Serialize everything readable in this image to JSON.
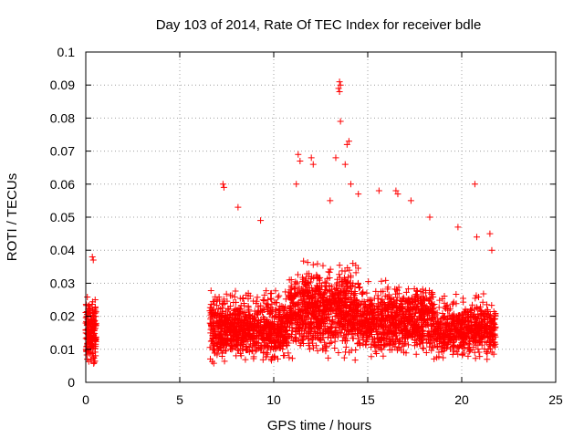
{
  "chart_data": {
    "type": "scatter",
    "title": "Day 103 of 2014, Rate Of TEC Index for receiver bdle",
    "xlabel": "GPS time / hours",
    "ylabel": "ROTI / TECUs",
    "xlim": [
      0,
      25
    ],
    "ylim": [
      0,
      0.1
    ],
    "x_ticks": [
      "0",
      "5",
      "10",
      "15",
      "20",
      "25"
    ],
    "y_ticks": [
      "0",
      "0.01",
      "0.02",
      "0.03",
      "0.04",
      "0.05",
      "0.06",
      "0.07",
      "0.08",
      "0.09",
      "0.1"
    ],
    "grid": true,
    "marker": "+",
    "color": "#ff0000",
    "point_clusters": [
      {
        "x_range": [
          0.0,
          0.55
        ],
        "y_range": [
          0.004,
          0.028
        ],
        "count": 180
      },
      {
        "x_range": [
          6.6,
          10.8
        ],
        "y_range": [
          0.005,
          0.03
        ],
        "count": 900
      },
      {
        "x_range": [
          10.8,
          14.6
        ],
        "y_range": [
          0.006,
          0.04
        ],
        "count": 900
      },
      {
        "x_range": [
          14.6,
          18.5
        ],
        "y_range": [
          0.007,
          0.033
        ],
        "count": 800
      },
      {
        "x_range": [
          18.5,
          21.8
        ],
        "y_range": [
          0.006,
          0.028
        ],
        "count": 600
      }
    ],
    "notable_points": [
      {
        "x": 0.35,
        "y": 0.038
      },
      {
        "x": 0.4,
        "y": 0.037
      },
      {
        "x": 7.3,
        "y": 0.06
      },
      {
        "x": 7.35,
        "y": 0.059
      },
      {
        "x": 8.1,
        "y": 0.053
      },
      {
        "x": 9.3,
        "y": 0.049
      },
      {
        "x": 11.3,
        "y": 0.069
      },
      {
        "x": 11.4,
        "y": 0.067
      },
      {
        "x": 11.2,
        "y": 0.06
      },
      {
        "x": 12.0,
        "y": 0.068
      },
      {
        "x": 12.1,
        "y": 0.066
      },
      {
        "x": 13.0,
        "y": 0.055
      },
      {
        "x": 13.3,
        "y": 0.068
      },
      {
        "x": 13.5,
        "y": 0.091
      },
      {
        "x": 13.55,
        "y": 0.09
      },
      {
        "x": 13.45,
        "y": 0.089
      },
      {
        "x": 13.5,
        "y": 0.088
      },
      {
        "x": 13.55,
        "y": 0.079
      },
      {
        "x": 13.9,
        "y": 0.072
      },
      {
        "x": 14.0,
        "y": 0.073
      },
      {
        "x": 13.8,
        "y": 0.066
      },
      {
        "x": 14.1,
        "y": 0.06
      },
      {
        "x": 14.5,
        "y": 0.057
      },
      {
        "x": 15.6,
        "y": 0.058
      },
      {
        "x": 16.5,
        "y": 0.058
      },
      {
        "x": 16.6,
        "y": 0.057
      },
      {
        "x": 17.3,
        "y": 0.055
      },
      {
        "x": 18.3,
        "y": 0.05
      },
      {
        "x": 19.8,
        "y": 0.047
      },
      {
        "x": 20.7,
        "y": 0.06
      },
      {
        "x": 20.8,
        "y": 0.044
      },
      {
        "x": 21.5,
        "y": 0.045
      },
      {
        "x": 21.6,
        "y": 0.04
      }
    ]
  }
}
